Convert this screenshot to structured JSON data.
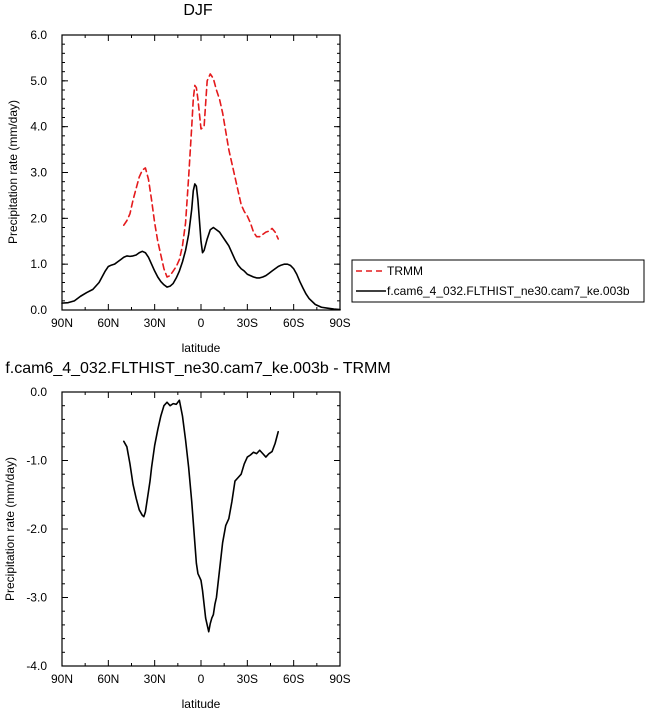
{
  "chart_data": [
    {
      "type": "line",
      "title": "DJF",
      "xlabel": "latitude",
      "ylabel": "Precipitation rate (mm/day)",
      "xlim": [
        -90,
        90
      ],
      "ylim": [
        0,
        6
      ],
      "x_ticks": [
        -90,
        -60,
        -30,
        0,
        30,
        60,
        90
      ],
      "x_tick_labels": [
        "90N",
        "60N",
        "30N",
        "0",
        "30S",
        "60S",
        "90S"
      ],
      "y_ticks": [
        0,
        1,
        2,
        3,
        4,
        5,
        6
      ],
      "y_tick_labels": [
        "0.0",
        "1.0",
        "2.0",
        "3.0",
        "4.0",
        "5.0",
        "6.0"
      ],
      "legend_position": "right",
      "series": [
        {
          "name": "TRMM",
          "color": "#e41a1c",
          "dash": "dashed",
          "x": [
            -50,
            -48,
            -46,
            -44,
            -42,
            -40,
            -38,
            -36,
            -34,
            -32,
            -30,
            -28,
            -26,
            -24,
            -22,
            -20,
            -18,
            -16,
            -14,
            -12,
            -10,
            -8,
            -6,
            -5,
            -4,
            -3,
            -2,
            0,
            2,
            3,
            4,
            6,
            8,
            10,
            12,
            14,
            16,
            18,
            20,
            22,
            24,
            26,
            28,
            30,
            32,
            34,
            36,
            38,
            40,
            42,
            44,
            46,
            48,
            50
          ],
          "values": [
            1.85,
            1.95,
            2.1,
            2.4,
            2.65,
            2.9,
            3.05,
            3.1,
            2.85,
            2.4,
            1.9,
            1.5,
            1.2,
            0.9,
            0.72,
            0.75,
            0.85,
            0.95,
            1.1,
            1.4,
            1.9,
            2.9,
            4.0,
            4.6,
            4.9,
            4.85,
            4.6,
            3.95,
            4.0,
            4.5,
            5.0,
            5.15,
            5.05,
            4.8,
            4.6,
            4.3,
            3.9,
            3.5,
            3.2,
            2.9,
            2.6,
            2.3,
            2.15,
            2.05,
            1.9,
            1.7,
            1.6,
            1.6,
            1.65,
            1.7,
            1.72,
            1.78,
            1.7,
            1.55
          ]
        },
        {
          "name": "f.cam6_4_032.FLTHIST_ne30.cam7_ke.003b",
          "color": "#000000",
          "dash": "solid",
          "x": [
            -90,
            -86,
            -82,
            -78,
            -74,
            -70,
            -66,
            -62,
            -60,
            -58,
            -56,
            -54,
            -52,
            -50,
            -48,
            -46,
            -44,
            -42,
            -40,
            -38,
            -36,
            -34,
            -32,
            -30,
            -28,
            -26,
            -24,
            -22,
            -20,
            -18,
            -16,
            -14,
            -12,
            -10,
            -8,
            -6,
            -5,
            -4,
            -3,
            -2,
            0,
            1,
            2,
            4,
            6,
            8,
            10,
            12,
            14,
            16,
            18,
            20,
            22,
            24,
            26,
            28,
            30,
            32,
            34,
            36,
            38,
            40,
            42,
            44,
            46,
            48,
            50,
            52,
            54,
            56,
            58,
            60,
            62,
            64,
            66,
            68,
            70,
            74,
            78,
            82,
            86,
            90
          ],
          "values": [
            0.15,
            0.16,
            0.2,
            0.3,
            0.38,
            0.45,
            0.6,
            0.85,
            0.95,
            0.98,
            1.0,
            1.05,
            1.1,
            1.15,
            1.18,
            1.17,
            1.18,
            1.2,
            1.25,
            1.28,
            1.25,
            1.15,
            1.0,
            0.85,
            0.72,
            0.62,
            0.55,
            0.5,
            0.52,
            0.58,
            0.7,
            0.85,
            1.05,
            1.3,
            1.65,
            2.2,
            2.6,
            2.75,
            2.7,
            2.4,
            1.5,
            1.25,
            1.3,
            1.55,
            1.75,
            1.8,
            1.75,
            1.7,
            1.6,
            1.5,
            1.4,
            1.25,
            1.1,
            0.98,
            0.9,
            0.85,
            0.78,
            0.75,
            0.72,
            0.7,
            0.7,
            0.72,
            0.75,
            0.8,
            0.85,
            0.9,
            0.95,
            0.98,
            1.0,
            1.0,
            0.97,
            0.9,
            0.78,
            0.62,
            0.48,
            0.35,
            0.25,
            0.12,
            0.06,
            0.04,
            0.02,
            0.01
          ]
        }
      ]
    },
    {
      "type": "line",
      "title": "f.cam6_4_032.FLTHIST_ne30.cam7_ke.003b - TRMM",
      "xlabel": "latitude",
      "ylabel": "Precipitation rate (mm/day)",
      "xlim": [
        -90,
        90
      ],
      "ylim": [
        -4,
        0
      ],
      "x_ticks": [
        -90,
        -60,
        -30,
        0,
        30,
        60,
        90
      ],
      "x_tick_labels": [
        "90N",
        "60N",
        "30N",
        "0",
        "30S",
        "60S",
        "90S"
      ],
      "y_ticks": [
        -4,
        -3,
        -2,
        -1,
        0
      ],
      "y_tick_labels": [
        "-4.0",
        "-3.0",
        "-2.0",
        "-1.0",
        "0.0"
      ],
      "series": [
        {
          "color": "#000000",
          "dash": "solid",
          "x": [
            -50,
            -48,
            -46,
            -44,
            -42,
            -40,
            -38,
            -37,
            -36,
            -35,
            -34,
            -33,
            -32,
            -30,
            -28,
            -26,
            -24,
            -22,
            -20,
            -18,
            -16,
            -14,
            -12,
            -10,
            -8,
            -6,
            -5,
            -4,
            -3,
            -2,
            -1,
            0,
            1,
            2,
            3,
            4,
            5,
            6,
            7,
            8,
            9,
            10,
            12,
            14,
            16,
            18,
            20,
            22,
            24,
            26,
            28,
            30,
            32,
            34,
            36,
            38,
            40,
            42,
            44,
            46,
            48,
            50
          ],
          "values": [
            -0.72,
            -0.8,
            -1.05,
            -1.35,
            -1.55,
            -1.72,
            -1.8,
            -1.82,
            -1.75,
            -1.6,
            -1.45,
            -1.3,
            -1.1,
            -0.78,
            -0.55,
            -0.35,
            -0.2,
            -0.15,
            -0.2,
            -0.17,
            -0.18,
            -0.12,
            -0.35,
            -0.7,
            -1.1,
            -1.6,
            -1.9,
            -2.2,
            -2.5,
            -2.65,
            -2.7,
            -2.75,
            -2.9,
            -3.1,
            -3.3,
            -3.4,
            -3.5,
            -3.38,
            -3.3,
            -3.25,
            -3.1,
            -3.0,
            -2.6,
            -2.2,
            -1.95,
            -1.85,
            -1.6,
            -1.3,
            -1.25,
            -1.2,
            -1.05,
            -0.95,
            -0.92,
            -0.88,
            -0.9,
            -0.85,
            -0.9,
            -0.95,
            -0.9,
            -0.87,
            -0.75,
            -0.58
          ]
        }
      ]
    }
  ]
}
